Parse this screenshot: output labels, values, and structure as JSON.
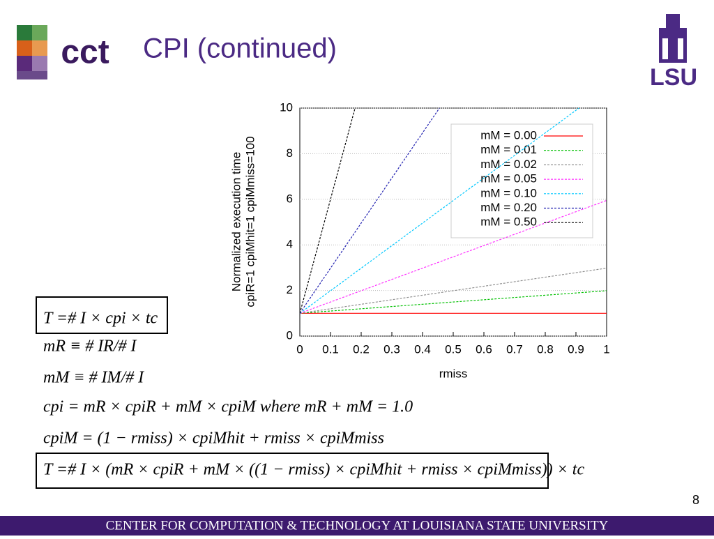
{
  "title": "CPI (continued)",
  "logo_left": "cct",
  "logo_right": "LSU",
  "page_number": "8",
  "footer": "CENTER FOR COMPUTATION & TECHNOLOGY AT LOUISIANA STATE UNIVERSITY",
  "formulas": [
    "T =# I × cpi × tc",
    "mR ≡ # IR/# I",
    "mM ≡ # IM/# I",
    "cpi = mR × cpiR + mM × cpiM  where mR + mM = 1.0",
    "cpiM = (1 − rmiss) × cpiMhit + rmiss × cpiMmiss",
    "T =# I × (mR × cpiR + mM × ((1 − rmiss) × cpiMhit + rmiss × cpiMmiss)) × tc"
  ],
  "chart_data": {
    "type": "line",
    "ylabel": [
      "Normalized execution time",
      "cpiR=1 cpiMhit=1 cpiMmiss=100"
    ],
    "xlabel": "rmiss",
    "xlim": [
      0,
      1
    ],
    "ylim": [
      0,
      10
    ],
    "xticks": [
      0,
      0.1,
      0.2,
      0.3,
      0.4,
      0.5,
      0.6,
      0.7,
      0.8,
      0.9,
      1
    ],
    "yticks": [
      0,
      2,
      4,
      6,
      8,
      10
    ],
    "grid": true,
    "legend": "upper right",
    "series": [
      {
        "name": "mM = 0.00",
        "color": "#ff0000",
        "x": [
          0,
          1
        ],
        "values": [
          1,
          1
        ]
      },
      {
        "name": "mM = 0.01",
        "color": "#00c000",
        "x": [
          0,
          1
        ],
        "values": [
          1,
          1.99
        ]
      },
      {
        "name": "mM = 0.02",
        "color": "#909090",
        "x": [
          0,
          1
        ],
        "values": [
          1,
          2.98
        ]
      },
      {
        "name": "mM = 0.05",
        "color": "#ff30ff",
        "x": [
          0,
          1
        ],
        "values": [
          1,
          5.95
        ]
      },
      {
        "name": "mM = 0.10",
        "color": "#00c8ff",
        "x": [
          0,
          0.91
        ],
        "values": [
          1,
          10
        ]
      },
      {
        "name": "mM = 0.20",
        "color": "#2020b0",
        "x": [
          0,
          0.455
        ],
        "values": [
          1,
          10
        ]
      },
      {
        "name": "mM = 0.50",
        "color": "#000000",
        "x": [
          0,
          0.18
        ],
        "values": [
          1,
          10
        ]
      }
    ]
  }
}
